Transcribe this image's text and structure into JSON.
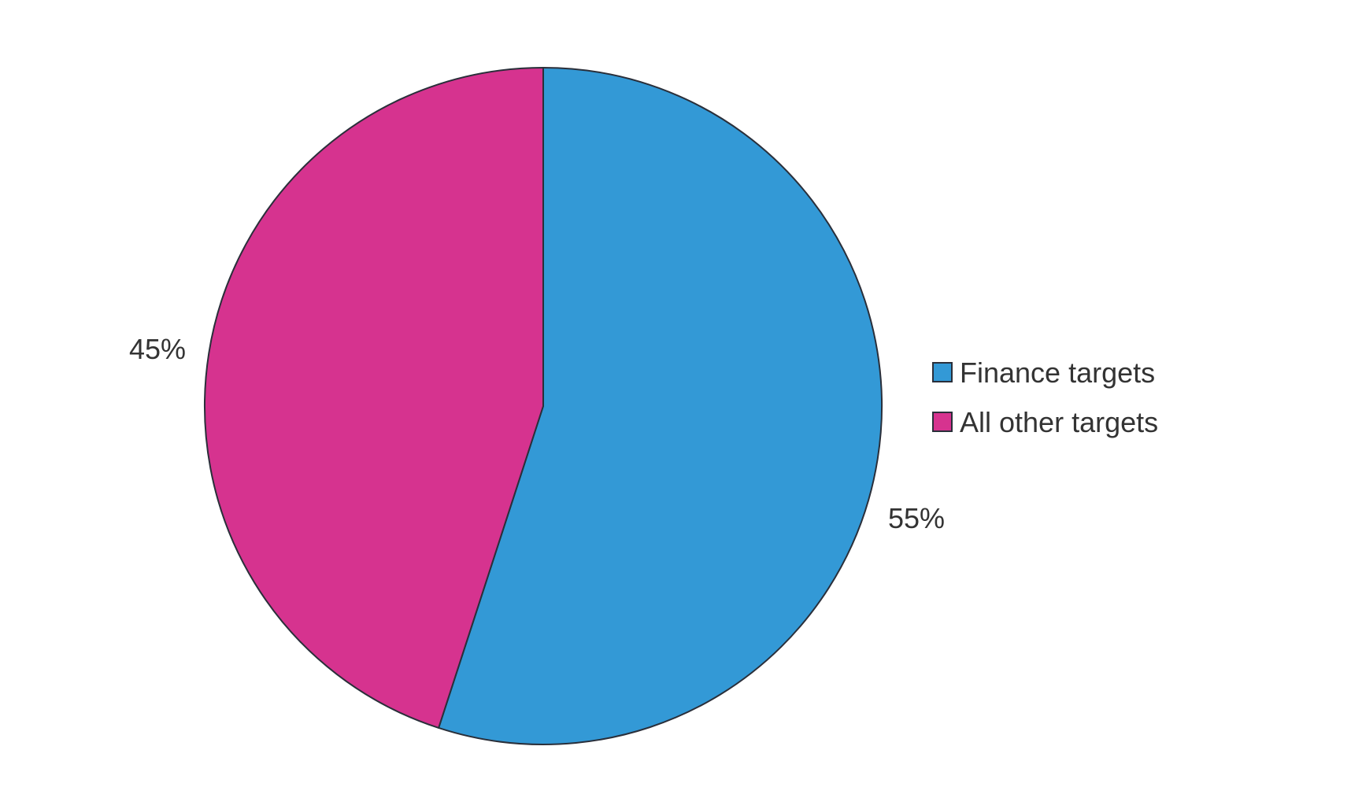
{
  "chart_data": {
    "type": "pie",
    "title": "",
    "categories": [
      "Finance targets",
      "All other targets"
    ],
    "values": [
      55,
      45
    ],
    "labels": [
      "55%",
      "45%"
    ],
    "colors": [
      "#3399d6",
      "#d6338f"
    ],
    "legend": {
      "placement": "right",
      "entries": [
        "Finance targets",
        "All other targets"
      ]
    },
    "start_angle_deg": 0,
    "direction": "clockwise"
  }
}
